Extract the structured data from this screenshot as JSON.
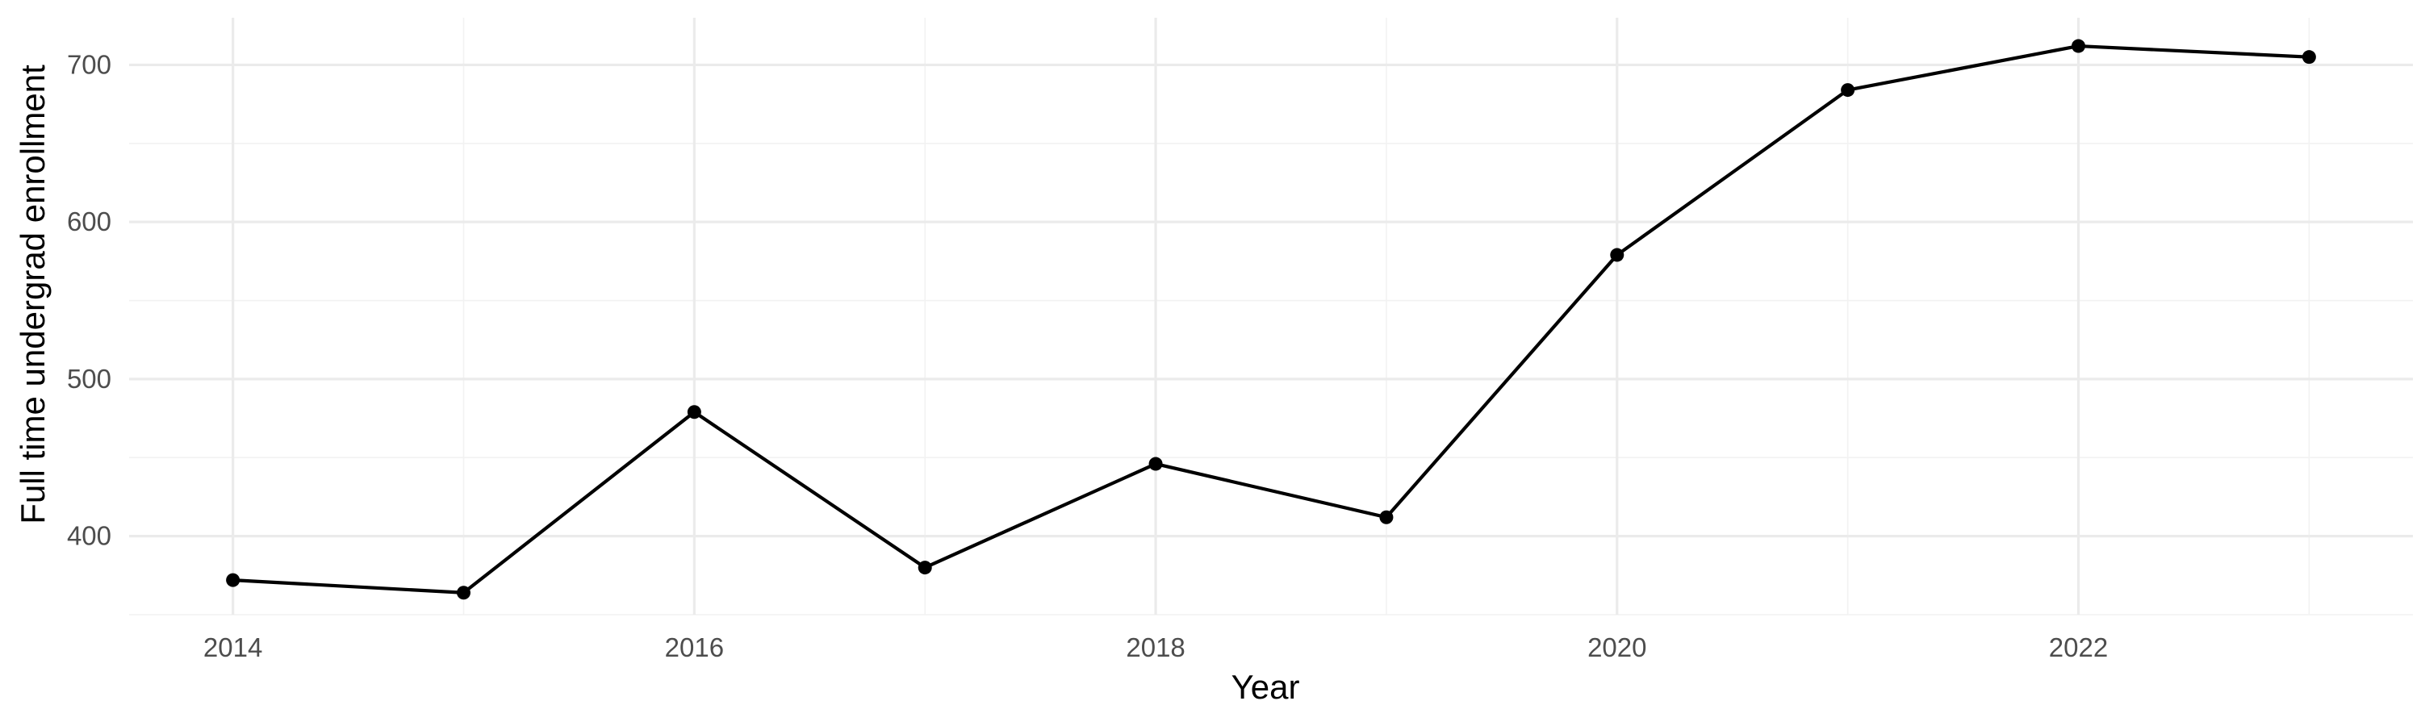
{
  "chart_data": {
    "type": "line",
    "title": "",
    "xlabel": "Year",
    "ylabel": "Full time undergrad enrollment",
    "x": [
      2014,
      2015,
      2016,
      2017,
      2018,
      2019,
      2020,
      2021,
      2022,
      2023
    ],
    "series": [
      {
        "values": [
          372,
          364,
          479,
          380,
          446,
          412,
          579,
          684,
          712,
          705
        ],
        "color": "#000000"
      }
    ],
    "x_ticks": [
      2014,
      2016,
      2018,
      2020,
      2022
    ],
    "x_tick_labels": [
      "2014",
      "2016",
      "2018",
      "2020",
      "2022"
    ],
    "y_ticks": [
      400,
      500,
      600,
      700
    ],
    "y_tick_labels": [
      "400",
      "500",
      "600",
      "700"
    ],
    "xlim": [
      2013.55,
      2023.45
    ],
    "ylim": [
      350,
      730
    ],
    "grid": true,
    "legend": "none",
    "markers": true
  }
}
